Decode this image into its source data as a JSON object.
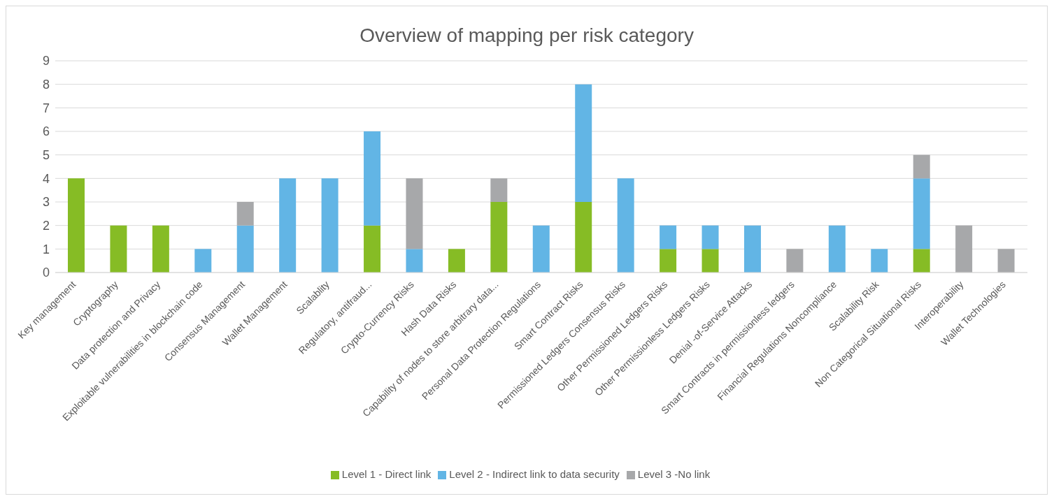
{
  "chart_data": {
    "type": "bar",
    "title": "Overview of mapping per risk category",
    "stacked": true,
    "categories": [
      "Key management",
      "Cryptography",
      "Data protection and Privacy",
      "Exploitable vulnerabilities in blockchain code",
      "Consensus Management",
      "Wallet Management",
      "Scalablity",
      "Regulatory, antifraud...",
      "Crypto-Currency Risks",
      "Hash Data Risks",
      "Capability of nodes to store arbitrary data...",
      "Personal Data Protection Regulations",
      "Smart Contract Risks",
      "Permissioned Ledgers Consensus Risks",
      "Other Permissioned Ledgers Risks",
      "Other Permissionless Ledgers Risks",
      "Denial -of-Service Attacks",
      "Smart Contracts in permissionless ledgers",
      "Financial Regulations Noncompliance",
      "Scalability Risk",
      "Non Categorical Situational Risks",
      "Interoperability",
      "Wallet Technologies"
    ],
    "series": [
      {
        "name": "Level 1 - Direct link",
        "color": "#86bc25",
        "values": [
          4,
          2,
          2,
          0,
          0,
          0,
          0,
          2,
          0,
          1,
          3,
          0,
          3,
          0,
          1,
          1,
          0,
          0,
          0,
          0,
          1,
          0,
          0
        ]
      },
      {
        "name": "Level 2 - Indirect link to data security",
        "color": "#62b5e5",
        "values": [
          0,
          0,
          0,
          1,
          2,
          4,
          4,
          4,
          1,
          0,
          0,
          2,
          5,
          4,
          1,
          1,
          2,
          0,
          2,
          1,
          3,
          0,
          0
        ]
      },
      {
        "name": "Level 3 -No link",
        "color": "#a7a8aa",
        "values": [
          0,
          0,
          0,
          0,
          1,
          0,
          0,
          0,
          3,
          0,
          1,
          0,
          0,
          0,
          0,
          0,
          0,
          1,
          0,
          0,
          1,
          2,
          1
        ]
      }
    ],
    "ylim": [
      0,
      9
    ],
    "yticks": [
      0,
      1,
      2,
      3,
      4,
      5,
      6,
      7,
      8,
      9
    ],
    "grid": "y",
    "legend": "bottom"
  }
}
